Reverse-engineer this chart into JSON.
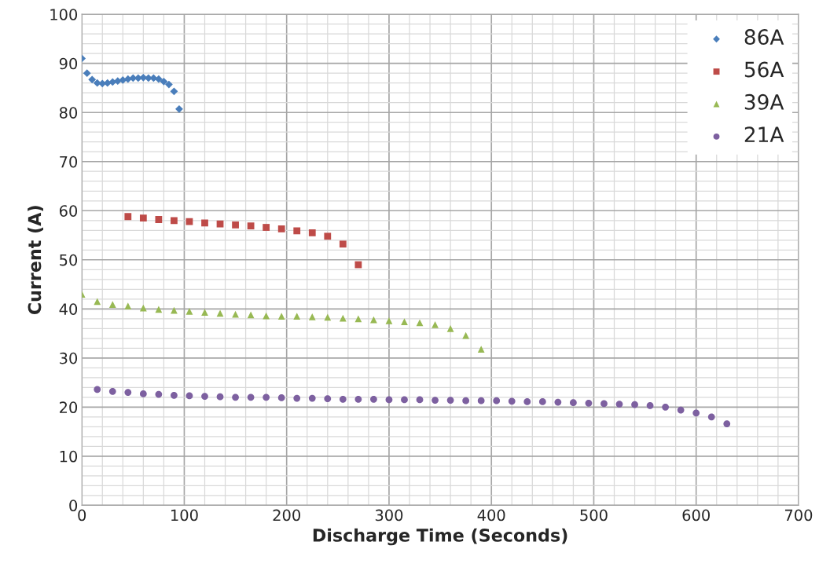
{
  "chart_data": {
    "type": "scatter",
    "xlabel": "Discharge Time (Seconds)",
    "ylabel": "Current (A)",
    "xlim": [
      0,
      700
    ],
    "xticks": [
      0,
      100,
      200,
      300,
      400,
      500,
      600,
      700
    ],
    "ylim": [
      0,
      100
    ],
    "yticks": [
      0,
      10,
      20,
      30,
      40,
      50,
      60,
      70,
      80,
      90,
      100
    ],
    "grid": true,
    "legend": "top right",
    "series": [
      {
        "name": "86A",
        "color": "#4a7ebb",
        "marker": "diamond",
        "x": [
          0,
          5,
          10,
          15,
          20,
          25,
          30,
          35,
          40,
          45,
          50,
          55,
          60,
          65,
          70,
          75,
          80,
          85,
          90,
          95
        ],
        "values": [
          91,
          88,
          86.7,
          86,
          85.9,
          86,
          86.2,
          86.4,
          86.6,
          86.8,
          87,
          87,
          87.1,
          87,
          87,
          86.8,
          86.3,
          85.7,
          84.3,
          80.7
        ]
      },
      {
        "name": "56A",
        "color": "#be4b48",
        "marker": "square",
        "x": [
          45,
          60,
          75,
          90,
          105,
          120,
          135,
          150,
          165,
          180,
          195,
          210,
          225,
          240,
          255,
          270
        ],
        "values": [
          58.8,
          58.5,
          58.2,
          58.0,
          57.8,
          57.5,
          57.3,
          57.1,
          56.9,
          56.6,
          56.3,
          55.9,
          55.5,
          54.8,
          53.2,
          49.0
        ]
      },
      {
        "name": "39A",
        "color": "#98b954",
        "marker": "triangle",
        "x": [
          0,
          15,
          30,
          45,
          60,
          75,
          90,
          105,
          120,
          135,
          150,
          165,
          180,
          195,
          210,
          225,
          240,
          255,
          270,
          285,
          300,
          315,
          330,
          345,
          360,
          375,
          390
        ],
        "values": [
          43.0,
          41.5,
          40.9,
          40.6,
          40.2,
          39.9,
          39.7,
          39.5,
          39.3,
          39.1,
          38.9,
          38.8,
          38.6,
          38.5,
          38.5,
          38.4,
          38.3,
          38.1,
          38.0,
          37.8,
          37.6,
          37.4,
          37.2,
          36.8,
          36.0,
          34.6,
          31.8
        ]
      },
      {
        "name": "21A",
        "color": "#7d60a0",
        "marker": "circle",
        "x": [
          15,
          30,
          45,
          60,
          75,
          90,
          105,
          120,
          135,
          150,
          165,
          180,
          195,
          210,
          225,
          240,
          255,
          270,
          285,
          300,
          315,
          330,
          345,
          360,
          375,
          390,
          405,
          420,
          435,
          450,
          465,
          480,
          495,
          510,
          525,
          540,
          555,
          570,
          585,
          600,
          615,
          630
        ],
        "values": [
          23.6,
          23.2,
          23.0,
          22.7,
          22.6,
          22.4,
          22.3,
          22.2,
          22.1,
          22.0,
          22.0,
          22.0,
          21.9,
          21.8,
          21.8,
          21.7,
          21.6,
          21.6,
          21.6,
          21.5,
          21.5,
          21.5,
          21.4,
          21.4,
          21.3,
          21.3,
          21.3,
          21.2,
          21.1,
          21.1,
          21.0,
          20.9,
          20.8,
          20.7,
          20.6,
          20.5,
          20.3,
          20.0,
          19.4,
          18.8,
          18.0,
          16.6
        ]
      }
    ]
  }
}
